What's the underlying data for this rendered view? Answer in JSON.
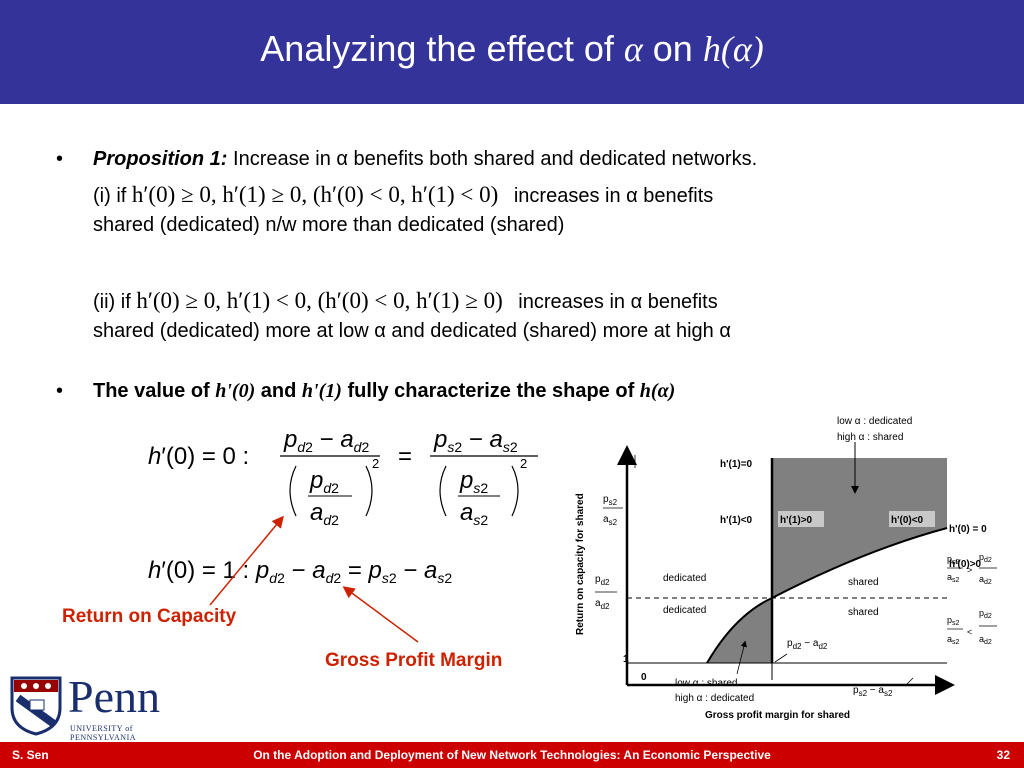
{
  "slide": {
    "title_prefix": "Analyzing the effect of ",
    "title_alpha": "α",
    "title_mid": " on ",
    "title_func": "h(α)"
  },
  "bullets": {
    "b1_label": "Proposition 1:",
    "b1_text": " Increase in α benefits both shared and dedicated networks.",
    "i_prefix": "(i) if",
    "i_condition": "h′(0) ≥ 0, h′(1) ≥ 0, (h′(0) < 0, h′(1) < 0)",
    "i_suffix": "increases in α benefits",
    "i_line2": "shared (dedicated) n/w more than dedicated (shared)",
    "ii_prefix": "(ii) if",
    "ii_condition": "h′(0) ≥ 0, h′(1) < 0, (h′(0) < 0, h′(1) ≥ 0)",
    "ii_suffix": "increases in α benefits",
    "ii_line2": "shared (dedicated) more at low α and dedicated (shared) more at high α",
    "b2_a": "The value of ",
    "b2_h0": "h'(0)",
    "b2_and": " and ",
    "b2_h1": "h'(1)",
    "b2_b": " fully characterize the shape of ",
    "b2_h": "h(α)"
  },
  "equations": {
    "eq1_lhs": "h′(0) = 0 :",
    "eq1_num_left": "p_d2 − a_d2",
    "eq1_den_left": "p_d2 / a_d2",
    "eq1_num_right": "p_s2 − a_s2",
    "eq1_den_right": "p_s2 / a_s2",
    "eq2": "h′(0) = 1 :  p_d2 − a_d2 = p_s2 − a_s2"
  },
  "annotations": {
    "return_on_capacity": "Return on Capacity",
    "gross_profit_margin": "Gross Profit Margin"
  },
  "diagram": {
    "y_axis_label": "Return on capacity for shared",
    "x_axis_label": "Gross profit margin for shared",
    "legend_low": "low α : dedicated",
    "legend_high": "high α : shared",
    "h1_eq0": "h'(1)=0",
    "h1_lt0": "h'(1)<0",
    "h1_gt0": "h'(1)>0",
    "h0_lt0": "h'(0)<0",
    "h0_eq0": "h'(0) = 0",
    "h0_gt0": "h'(0)>0",
    "dedicated_upper": "dedicated",
    "shared_upper": "shared",
    "dedicated_lower": "dedicated",
    "shared_lower": "shared",
    "bottom_low": "low α :  shared",
    "bottom_high": "high α : dedicated",
    "one": "1",
    "zero": "0",
    "ps2_as2_left": "p_s2 / a_s2",
    "pd2_ad2_left": "p_d2 / a_d2",
    "pd2_minus_ad2": "p_d2 − a_d2",
    "ps2_minus_as2": "p_s2 − a_s2",
    "cmp_gt": "p_s2/a_s2 > p_d2/a_d2",
    "cmp_lt": "p_s2/a_s2 < p_d2/a_d2"
  },
  "footer": {
    "author": "S. Sen",
    "talk_title": "On the Adoption and Deployment of New Network Technologies: An Economic Perspective",
    "page_number": "32"
  },
  "logo": {
    "name": "Penn",
    "subtitle": "UNIVERSITY of PENNSYLVANIA"
  }
}
